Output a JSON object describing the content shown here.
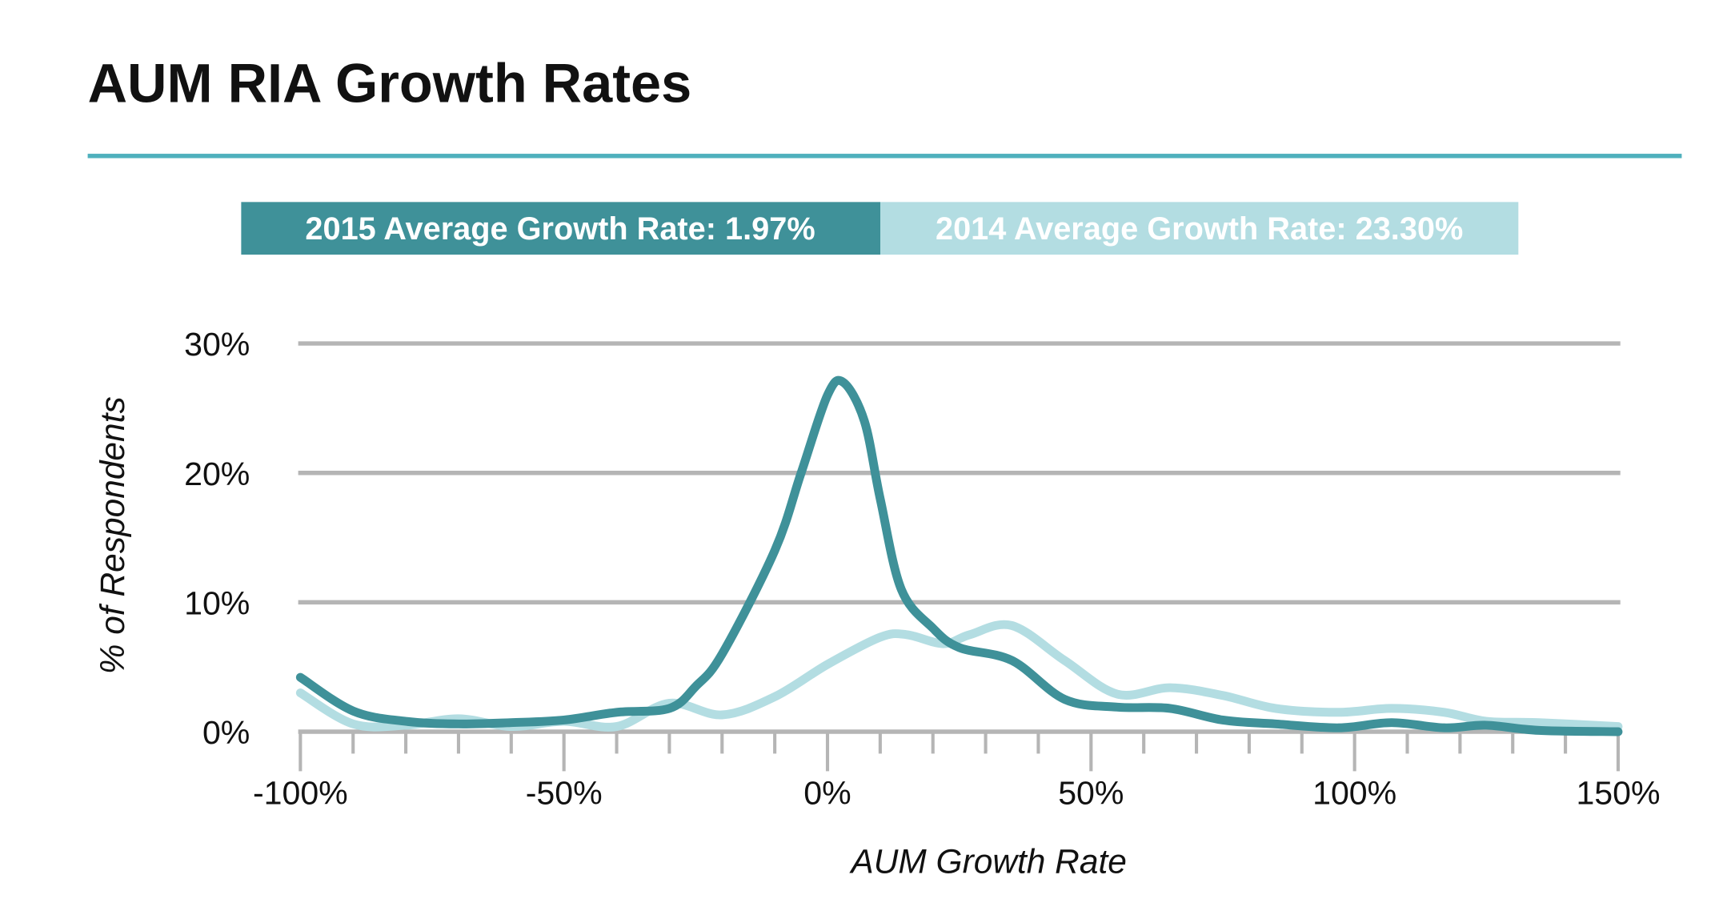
{
  "chart_data": {
    "type": "line",
    "title": "AUM RIA Growth Rates",
    "xlabel": "AUM Growth Rate",
    "ylabel": "% of Respondents",
    "xlim": [
      -100,
      150
    ],
    "ylim": [
      0,
      30
    ],
    "x_ticks": [
      "-100%",
      "-50%",
      "0%",
      "50%",
      "100%",
      "150%"
    ],
    "x_tick_values": [
      -100,
      -50,
      0,
      50,
      100,
      150
    ],
    "y_ticks": [
      "0%",
      "10%",
      "20%",
      "30%"
    ],
    "y_tick_values": [
      0,
      10,
      20,
      30
    ],
    "grid": "horizontal",
    "legend": [
      {
        "label": "2015 Average Growth Rate: 1.97%",
        "color": "#3f9199"
      },
      {
        "label": "2014 Average Growth Rate: 23.30%",
        "color": "#b3dde2"
      }
    ],
    "series": [
      {
        "color": "#3f9199",
        "x": [
          -100,
          -90,
          -80,
          -70,
          -60,
          -50,
          -40,
          -30,
          -25,
          -20,
          -10,
          -5,
          0,
          3,
          7,
          10,
          14,
          20,
          25,
          35,
          45,
          55,
          65,
          75,
          85,
          97,
          107,
          117,
          125,
          135,
          150
        ],
        "y": [
          4.2,
          1.6,
          0.8,
          0.6,
          0.7,
          0.9,
          1.5,
          1.8,
          3.5,
          6,
          14,
          20,
          26,
          27,
          24,
          18,
          11,
          8,
          6.5,
          5.5,
          2.5,
          1.9,
          1.8,
          0.9,
          0.6,
          0.3,
          0.7,
          0.3,
          0.5,
          0.1,
          0
        ]
      },
      {
        "color": "#b3dde2",
        "x": [
          -100,
          -90,
          -80,
          -70,
          -60,
          -50,
          -40,
          -30,
          -20,
          -10,
          0,
          10,
          15,
          22,
          27,
          35,
          45,
          55,
          65,
          75,
          85,
          97,
          107,
          117,
          125,
          135,
          150
        ],
        "y": [
          3.0,
          0.6,
          0.5,
          1.0,
          0.4,
          0.8,
          0.4,
          2.2,
          1.3,
          2.7,
          5.2,
          7.3,
          7.5,
          6.8,
          7.5,
          8.2,
          5.5,
          2.9,
          3.4,
          2.8,
          1.8,
          1.5,
          1.8,
          1.5,
          0.8,
          0.7,
          0.4
        ]
      }
    ]
  },
  "colors": {
    "accent": "#4fb0bd",
    "grid": "#b5b5b5"
  }
}
